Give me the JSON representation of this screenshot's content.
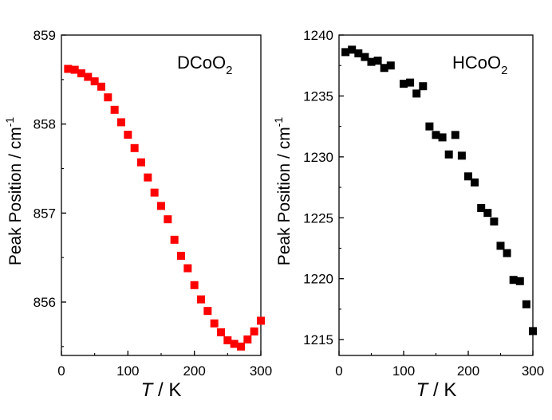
{
  "chart_data": [
    {
      "type": "scatter",
      "annotation": {
        "base": "DCoO",
        "sub": "2"
      },
      "ylabel": {
        "text": "Peak Position / cm",
        "sup": "-1"
      },
      "xlabel": {
        "italic": "T",
        "rest": " / K"
      },
      "xlim": [
        0,
        300
      ],
      "ylim": [
        855.4,
        859
      ],
      "xticks": [
        0,
        100,
        200,
        300
      ],
      "yticks": [
        856,
        857,
        858,
        859
      ],
      "marker_color": "#ff0000",
      "x": [
        10,
        20,
        30,
        40,
        50,
        60,
        70,
        80,
        90,
        100,
        110,
        120,
        130,
        140,
        150,
        160,
        170,
        180,
        190,
        200,
        210,
        220,
        230,
        240,
        250,
        260,
        270,
        280,
        290,
        300
      ],
      "y": [
        858.62,
        858.61,
        858.57,
        858.53,
        858.48,
        858.42,
        858.3,
        858.16,
        858.02,
        857.88,
        857.73,
        857.57,
        857.4,
        857.23,
        857.08,
        856.93,
        856.7,
        856.52,
        856.38,
        856.19,
        856.03,
        855.9,
        855.76,
        855.66,
        855.57,
        855.53,
        855.5,
        855.58,
        855.67,
        855.79
      ]
    },
    {
      "type": "scatter",
      "annotation": {
        "base": "HCoO",
        "sub": "2"
      },
      "ylabel": {
        "text": "Peak Position / cm",
        "sup": "-1"
      },
      "xlabel": {
        "italic": "T",
        "rest": " / K"
      },
      "xlim": [
        0,
        300
      ],
      "ylim": [
        1213.7,
        1240
      ],
      "xticks": [
        0,
        100,
        200,
        300
      ],
      "yticks": [
        1215,
        1220,
        1225,
        1230,
        1235,
        1240
      ],
      "marker_color": "#000000",
      "x": [
        10,
        20,
        30,
        40,
        50,
        60,
        70,
        80,
        100,
        110,
        120,
        130,
        140,
        150,
        160,
        170,
        180,
        190,
        200,
        210,
        220,
        230,
        240,
        250,
        260,
        270,
        280,
        290,
        300
      ],
      "y": [
        1238.6,
        1238.8,
        1238.5,
        1238.2,
        1237.8,
        1237.9,
        1237.3,
        1237.5,
        1236.0,
        1236.1,
        1235.2,
        1235.8,
        1232.5,
        1231.8,
        1231.6,
        1230.2,
        1231.8,
        1230.1,
        1228.4,
        1227.9,
        1225.8,
        1225.4,
        1224.7,
        1222.7,
        1222.1,
        1219.9,
        1219.8,
        1217.9,
        1215.7
      ]
    }
  ]
}
